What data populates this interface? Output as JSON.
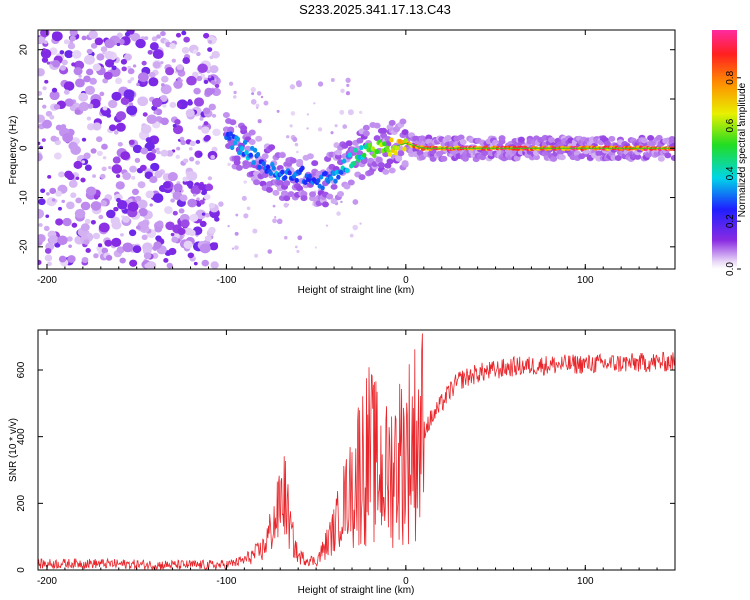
{
  "title": "S233.2025.341.17.13.C43",
  "chart_data": [
    {
      "type": "heatmap",
      "title": "",
      "xlabel": "Height of straight line (km)",
      "ylabel": "Frequency (Hz)",
      "xlim": [
        -205,
        150
      ],
      "ylim": [
        -24.5,
        24
      ],
      "xticks": [
        -200,
        -100,
        0,
        100
      ],
      "yticks": [
        -20,
        -10,
        0,
        10,
        20
      ],
      "colorbar": {
        "label": "Normalized spectral amplitude",
        "range": [
          0.0,
          1.0
        ],
        "ticks": [
          0.0,
          0.2,
          0.4,
          0.6,
          0.8
        ]
      },
      "ridge": {
        "x": [
          -100,
          -90,
          -80,
          -70,
          -60,
          -50,
          -40,
          -30,
          -20,
          -10,
          0,
          10,
          20,
          40,
          60,
          90,
          120,
          150
        ],
        "freq": [
          2,
          0,
          -3,
          -6,
          -5,
          -7,
          -6,
          -2,
          0,
          0,
          1,
          0,
          0,
          0,
          0,
          0,
          0,
          0
        ],
        "amplitude": [
          0.3,
          0.35,
          0.3,
          0.35,
          0.3,
          0.3,
          0.35,
          0.4,
          0.55,
          0.7,
          0.75,
          0.85,
          0.9,
          0.9,
          0.9,
          0.9,
          0.9,
          0.9
        ]
      },
      "noise_region": {
        "x_range": [
          -205,
          -105
        ],
        "freq_range": [
          -24,
          24
        ],
        "amplitude": 0.12
      }
    },
    {
      "type": "line",
      "title": "",
      "xlabel": "Height of straight line (km)",
      "ylabel": "SNR (10 * v/v)",
      "xlim": [
        -205,
        150
      ],
      "ylim": [
        0,
        720
      ],
      "xticks": [
        -200,
        -100,
        0,
        100
      ],
      "yticks": [
        0,
        200,
        400,
        600
      ],
      "color": "#e8252a",
      "series": [
        {
          "name": "SNR",
          "x": [
            -205,
            -180,
            -160,
            -140,
            -120,
            -100,
            -90,
            -80,
            -72,
            -68,
            -64,
            -60,
            -50,
            -45,
            -40,
            -35,
            -30,
            -25,
            -20,
            -15,
            -10,
            -5,
            0,
            5,
            10,
            15,
            20,
            25,
            30,
            40,
            50,
            60,
            80,
            100,
            120,
            150
          ],
          "y": [
            18,
            20,
            18,
            15,
            15,
            15,
            30,
            60,
            160,
            240,
            110,
            40,
            25,
            70,
            120,
            200,
            250,
            320,
            350,
            300,
            280,
            330,
            350,
            390,
            420,
            460,
            500,
            540,
            570,
            590,
            600,
            610,
            615,
            618,
            620,
            625
          ]
        }
      ]
    }
  ]
}
